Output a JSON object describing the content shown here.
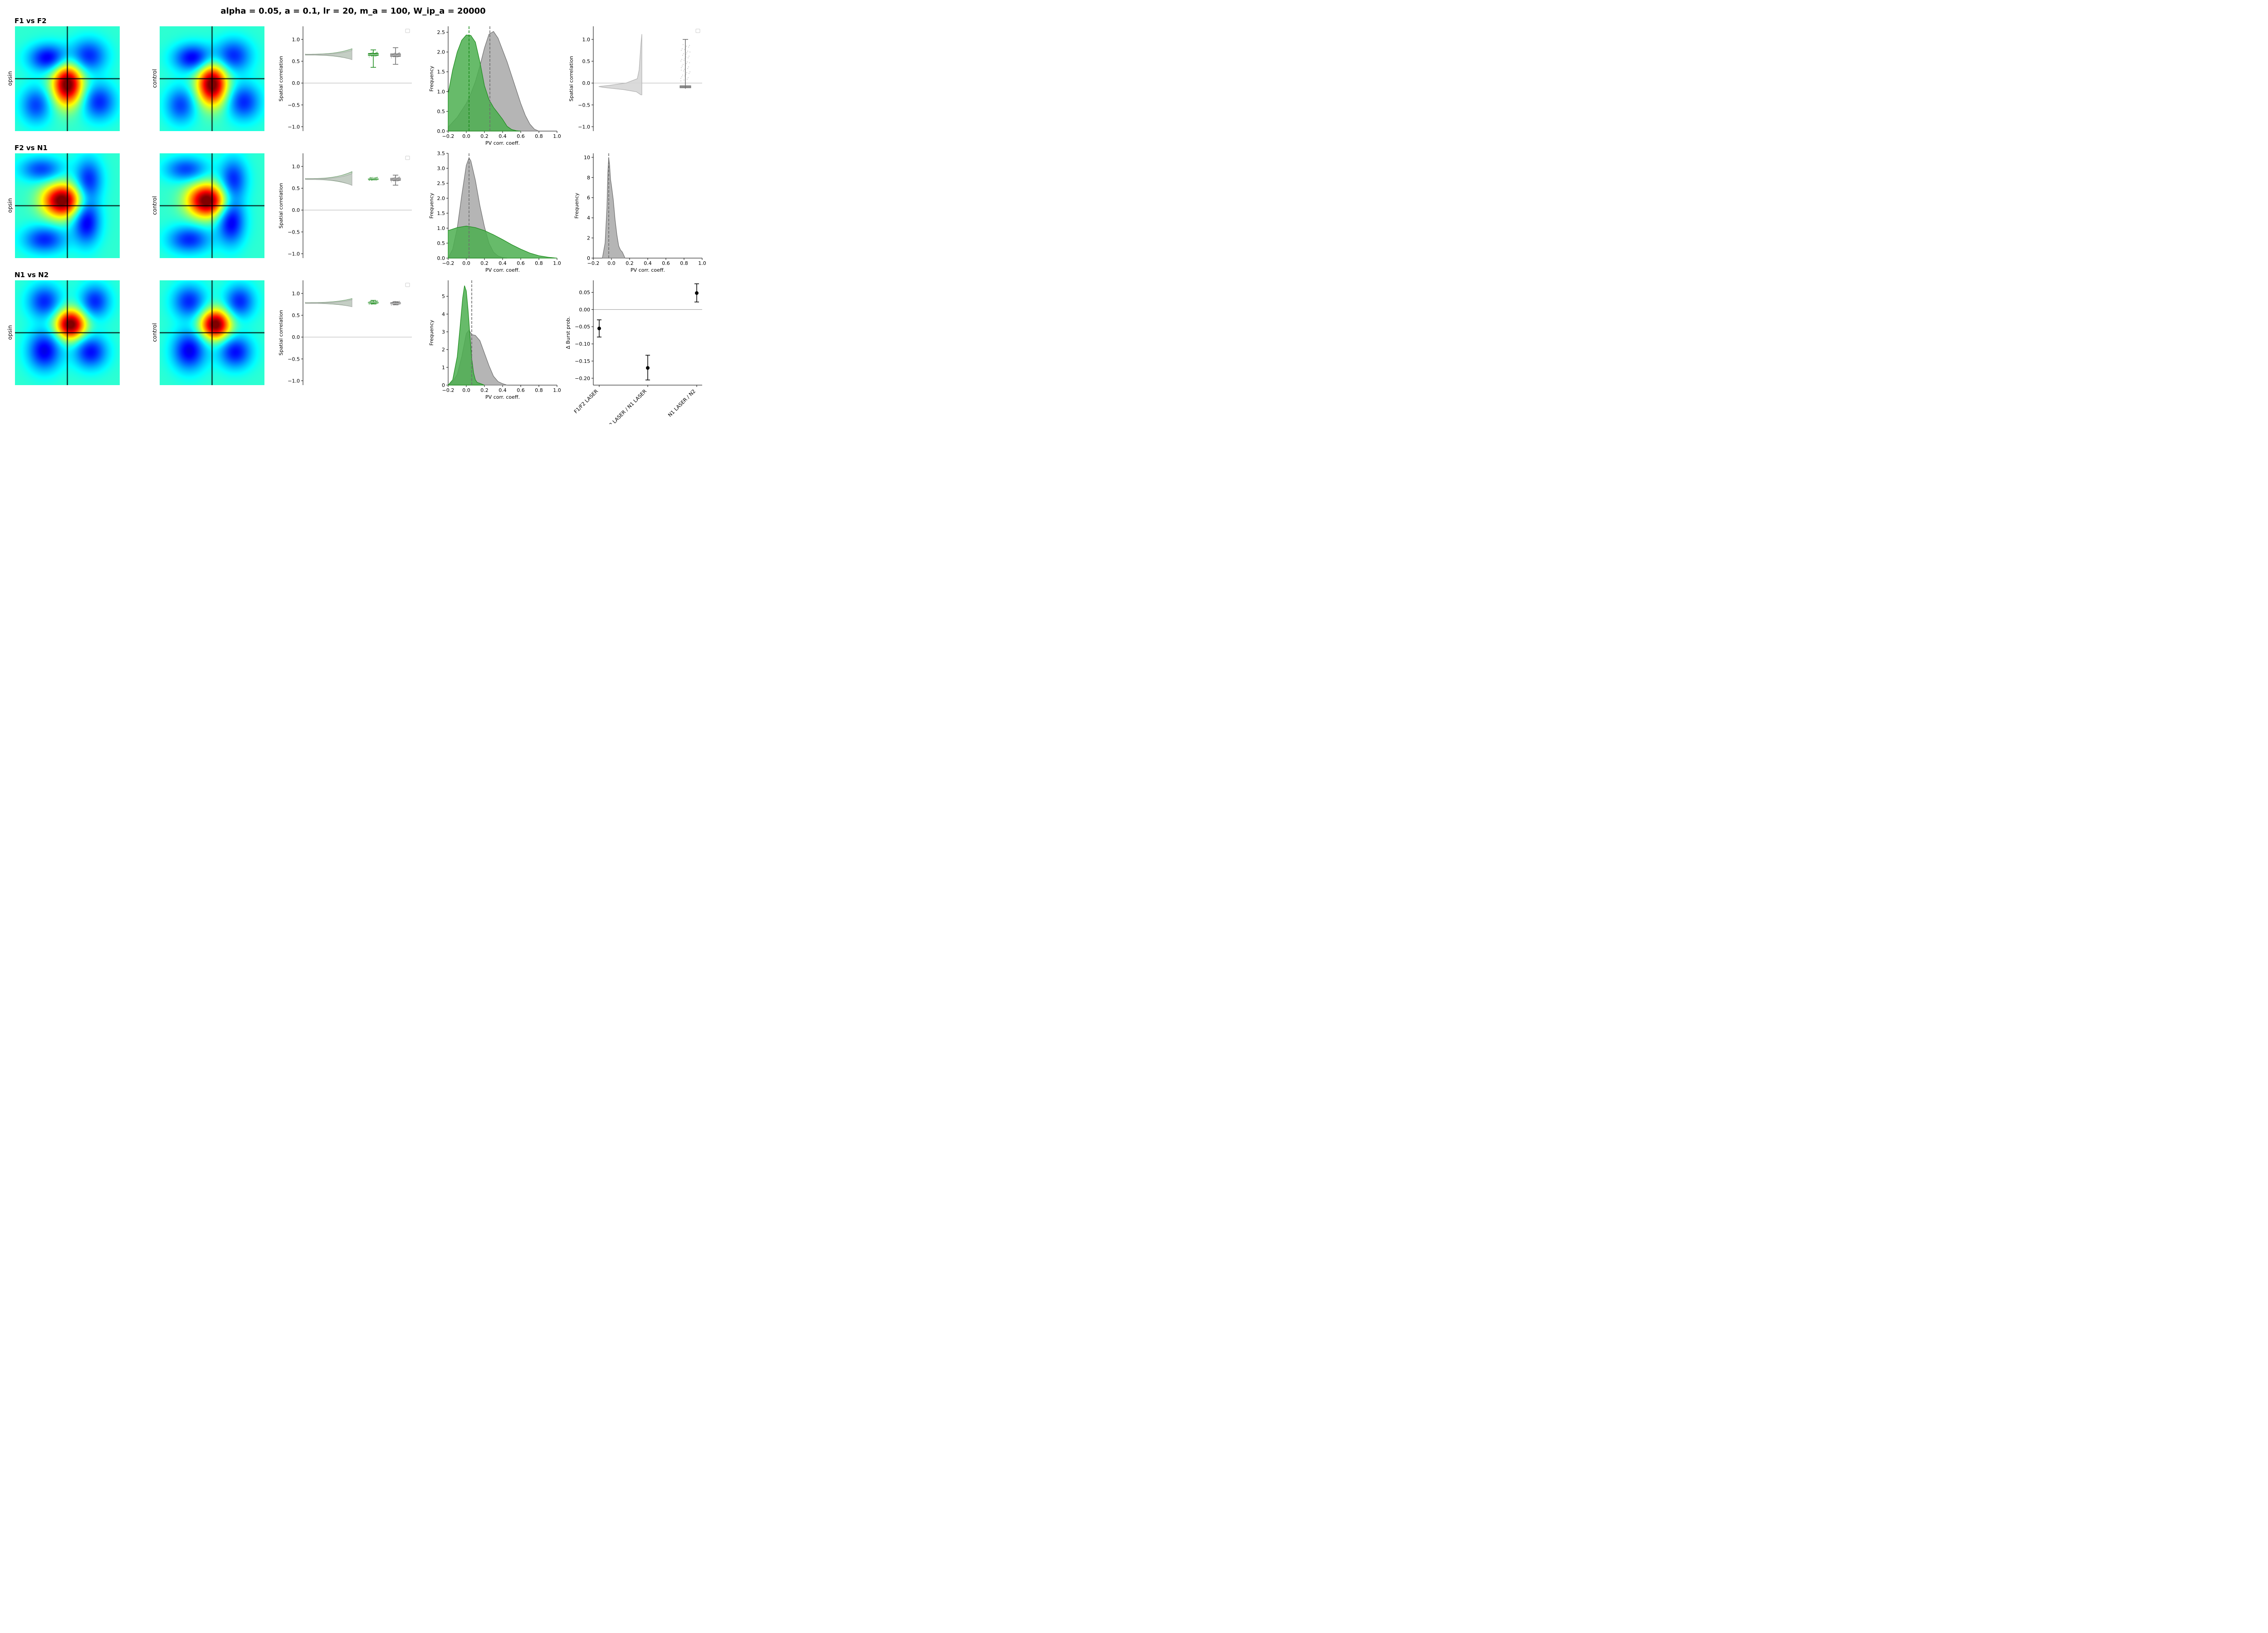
{
  "figure_title": "alpha = 0.05, a = 0.1, lr = 20, m_a = 100, W_ip_a = 20000",
  "rows": [
    {
      "title": "F1 vs F2",
      "left_label": "opsin",
      "right_label": "control"
    },
    {
      "title": "F2 vs N1",
      "left_label": "opsin",
      "right_label": "control"
    },
    {
      "title": "N1 vs N2",
      "left_label": "opsin",
      "right_label": "control"
    }
  ],
  "colors": {
    "opsin": "#1a8a1a",
    "opsin_fill": "#4caf50",
    "control": "#6e6e6e",
    "control_fill": "#a8a8a8",
    "light": "#cfcfcf"
  },
  "chart_data": [
    {
      "type": "heatmap",
      "row": "F1 vs F2",
      "panel": "opsin/control",
      "note_peaks": "correlation maps with crosshair at center",
      "colormap": "jet"
    },
    {
      "type": "violin_box",
      "row": "F1 vs F2",
      "ylabel": "Spatial correlation",
      "ylim": [
        -1.1,
        1.3
      ],
      "yticks": [
        -1.0,
        -0.5,
        0.0,
        0.5,
        1.0
      ],
      "opsin_box": {
        "min": 0.36,
        "q1": 0.63,
        "median": 0.65,
        "q3": 0.68,
        "max": 0.76
      },
      "control_box": {
        "min": 0.43,
        "q1": 0.61,
        "median": 0.64,
        "q3": 0.67,
        "max": 0.81
      },
      "violin_center": 0.65
    },
    {
      "type": "area",
      "row": "F1 vs F2",
      "xlabel": "PV corr. coeff.",
      "ylabel": "Frequency",
      "xlim": [
        -0.2,
        1.0
      ],
      "ylim": [
        0,
        2.65
      ],
      "xticks": [
        -0.2,
        0.0,
        0.2,
        0.4,
        0.6,
        0.8,
        1.0
      ],
      "yticks": [
        0.0,
        0.5,
        1.0,
        1.5,
        2.0,
        2.5
      ],
      "series": [
        {
          "name": "opsin",
          "x": [
            -0.2,
            -0.15,
            -0.1,
            -0.05,
            0.0,
            0.05,
            0.1,
            0.15,
            0.2,
            0.25,
            0.3,
            0.35,
            0.4,
            0.45,
            0.5,
            0.55,
            0.6
          ],
          "y": [
            0.95,
            1.55,
            2.0,
            2.3,
            2.43,
            2.42,
            2.25,
            1.75,
            1.15,
            0.8,
            0.6,
            0.45,
            0.3,
            0.12,
            0.04,
            0.01,
            0.0
          ],
          "mean": 0.03
        },
        {
          "name": "control",
          "x": [
            -0.2,
            -0.1,
            0.0,
            0.05,
            0.1,
            0.15,
            0.2,
            0.25,
            0.3,
            0.35,
            0.4,
            0.45,
            0.5,
            0.55,
            0.6,
            0.65,
            0.7,
            0.75,
            0.8
          ],
          "y": [
            0.1,
            0.35,
            0.7,
            0.95,
            1.25,
            1.65,
            2.1,
            2.45,
            2.52,
            2.35,
            2.05,
            1.75,
            1.4,
            1.05,
            0.7,
            0.4,
            0.18,
            0.05,
            0.0
          ],
          "mean": 0.26
        }
      ]
    },
    {
      "type": "violin_box",
      "row": "F1 vs F2 (right)",
      "ylabel": "Spatial correlation",
      "ylim": [
        -1.1,
        1.3
      ],
      "yticks": [
        -1.0,
        -0.5,
        0.0,
        0.5,
        1.0
      ],
      "control_box": {
        "min": -0.13,
        "q1": -0.11,
        "median": -0.09,
        "q3": -0.06,
        "max": 1.0
      }
    },
    {
      "type": "violin_box",
      "row": "F2 vs N1",
      "ylabel": "Spatial correlation",
      "ylim": [
        -1.1,
        1.3
      ],
      "yticks": [
        -1.0,
        -0.5,
        0.0,
        0.5,
        1.0
      ],
      "opsin_box": {
        "min": 0.71,
        "q1": 0.71,
        "median": 0.715,
        "q3": 0.72,
        "max": 0.72
      },
      "control_box": {
        "min": 0.57,
        "q1": 0.68,
        "median": 0.71,
        "q3": 0.73,
        "max": 0.8
      },
      "violin_center": 0.71
    },
    {
      "type": "area",
      "row": "F2 vs N1",
      "xlabel": "PV corr. coeff.",
      "ylabel": "Frequency",
      "xlim": [
        -0.2,
        1.0
      ],
      "ylim": [
        0,
        3.5
      ],
      "xticks": [
        -0.2,
        0.0,
        0.2,
        0.4,
        0.6,
        0.8,
        1.0
      ],
      "yticks": [
        0.0,
        0.5,
        1.0,
        1.5,
        2.0,
        2.5,
        3.0,
        3.5
      ],
      "series": [
        {
          "name": "opsin",
          "x": [
            -0.2,
            -0.1,
            0.0,
            0.1,
            0.2,
            0.3,
            0.4,
            0.5,
            0.6,
            0.7,
            0.8,
            0.9,
            1.0
          ],
          "y": [
            0.92,
            1.02,
            1.07,
            1.02,
            0.92,
            0.78,
            0.62,
            0.45,
            0.3,
            0.17,
            0.08,
            0.03,
            0.0
          ]
        },
        {
          "name": "control",
          "x": [
            -0.2,
            -0.15,
            -0.1,
            -0.05,
            0.0,
            0.03,
            0.05,
            0.1,
            0.15,
            0.2,
            0.25,
            0.3,
            0.35,
            0.4,
            0.45
          ],
          "y": [
            0.0,
            0.3,
            1.0,
            2.1,
            3.1,
            3.35,
            3.25,
            2.6,
            1.75,
            1.05,
            0.5,
            0.2,
            0.07,
            0.02,
            0.0
          ],
          "mean": 0.03
        }
      ]
    },
    {
      "type": "area",
      "row": "F2 vs N1 (right)",
      "xlabel": "PV corr. coeff.",
      "ylabel": "Frequency",
      "xlim": [
        -0.2,
        1.0
      ],
      "ylim": [
        0,
        10.4
      ],
      "xticks": [
        -0.2,
        0.0,
        0.2,
        0.4,
        0.6,
        0.8,
        1.0
      ],
      "yticks": [
        0,
        2,
        4,
        6,
        8,
        10
      ],
      "series": [
        {
          "name": "control",
          "x": [
            -0.1,
            -0.07,
            -0.05,
            -0.04,
            -0.03,
            -0.02,
            -0.01,
            0.0,
            0.02,
            0.04,
            0.06,
            0.08,
            0.1,
            0.12,
            0.15
          ],
          "y": [
            0.0,
            1.5,
            5.0,
            8.5,
            10.0,
            9.2,
            7.8,
            7.2,
            5.8,
            3.8,
            2.3,
            1.2,
            0.8,
            0.6,
            0.0
          ],
          "mean": -0.03
        }
      ]
    },
    {
      "type": "violin_box",
      "row": "N1 vs N2",
      "ylabel": "Spatial correlation",
      "ylim": [
        -1.1,
        1.3
      ],
      "yticks": [
        -1.0,
        -0.5,
        0.0,
        0.5,
        1.0
      ],
      "opsin_box": {
        "min": 0.76,
        "q1": 0.78,
        "median": 0.79,
        "q3": 0.8,
        "max": 0.84
      },
      "control_box": {
        "min": 0.74,
        "q1": 0.76,
        "median": 0.77,
        "q3": 0.79,
        "max": 0.81
      },
      "violin_center": 0.78
    },
    {
      "type": "area",
      "row": "N1 vs N2",
      "xlabel": "PV corr. coeff.",
      "ylabel": "Frequency",
      "xlim": [
        -0.2,
        1.0
      ],
      "ylim": [
        0,
        5.9
      ],
      "xticks": [
        -0.2,
        0.0,
        0.2,
        0.4,
        0.6,
        0.8,
        1.0
      ],
      "yticks": [
        0,
        1,
        2,
        3,
        4,
        5
      ],
      "series": [
        {
          "name": "opsin",
          "x": [
            -0.2,
            -0.15,
            -0.1,
            -0.07,
            -0.04,
            -0.02,
            0.0,
            0.02,
            0.04,
            0.06,
            0.08,
            0.1,
            0.12,
            0.15,
            0.2
          ],
          "y": [
            0.0,
            0.3,
            1.6,
            3.2,
            4.9,
            5.6,
            5.3,
            4.2,
            2.8,
            1.5,
            0.7,
            0.3,
            0.15,
            0.1,
            0.0
          ]
        },
        {
          "name": "control",
          "x": [
            -0.2,
            -0.15,
            -0.1,
            -0.05,
            0.0,
            0.03,
            0.06,
            0.1,
            0.15,
            0.2,
            0.25,
            0.3,
            0.35,
            0.4,
            0.45
          ],
          "y": [
            0.0,
            0.2,
            0.6,
            1.6,
            2.9,
            3.1,
            2.85,
            2.8,
            2.5,
            1.8,
            1.1,
            0.5,
            0.2,
            0.08,
            0.0
          ],
          "mean": 0.06
        }
      ]
    },
    {
      "type": "scatter",
      "row": "N1 vs N2 (right)",
      "ylabel": "Δ Burst prob.",
      "ylim": [
        -0.22,
        0.085
      ],
      "yticks": [
        -0.2,
        -0.15,
        -0.1,
        -0.05,
        0.0,
        0.05
      ],
      "categories": [
        "F1/F2 LASER",
        "F2 LASER / N1 LASER",
        "N1 LASER / N2"
      ],
      "values": [
        -0.055,
        -0.17,
        0.048
      ],
      "err_low": [
        -0.08,
        -0.205,
        0.022
      ],
      "err_high": [
        -0.03,
        -0.133,
        0.075
      ]
    }
  ]
}
